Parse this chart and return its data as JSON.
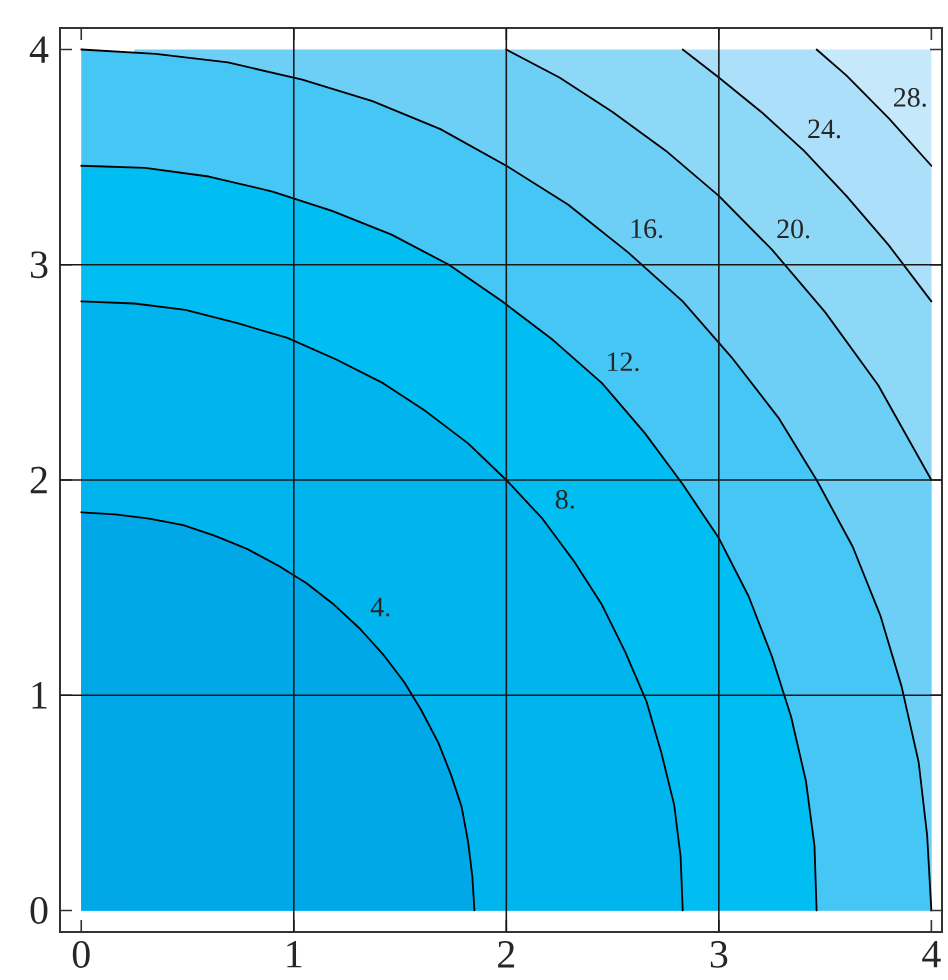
{
  "chart_data": {
    "type": "area",
    "xlim": [
      -0.1,
      4.05
    ],
    "ylim": [
      -0.1,
      4.1
    ],
    "xticks": [
      0,
      1,
      2,
      3,
      4
    ],
    "yticks": [
      0,
      1,
      2,
      3,
      4
    ],
    "grid": true,
    "series": [
      {
        "color": "#c5e9fb",
        "x": [
          3.46,
          4
        ],
        "values": [
          4,
          4
        ]
      },
      {
        "name": "28.",
        "color": "#acdff9",
        "x": [
          2.83,
          3.46,
          3.6,
          3.8,
          4
        ],
        "values": [
          4,
          4,
          3.88,
          3.68,
          3.46
        ]
      },
      {
        "name": "24.",
        "color": "#8ed8f7",
        "x": [
          2.0,
          2.83,
          3.0,
          3.2,
          3.4,
          3.6,
          3.8,
          4
        ],
        "values": [
          4,
          4,
          3.87,
          3.71,
          3.53,
          3.32,
          3.09,
          2.83
        ]
      },
      {
        "name": "20.",
        "color": "#6dcff6",
        "x": [
          0.25,
          2.0,
          2.25,
          2.5,
          2.75,
          3.0,
          3.25,
          3.5,
          3.75,
          4
        ],
        "values": [
          4,
          4,
          3.87,
          3.71,
          3.53,
          3.32,
          3.07,
          2.78,
          2.44,
          2.0
        ]
      },
      {
        "name": "16.",
        "color": "#45c6f5",
        "x": [
          0,
          0.35,
          0.69,
          1.04,
          1.37,
          1.69,
          2.0,
          2.29,
          2.57,
          2.83,
          3.06,
          3.28,
          3.46,
          3.63,
          3.76,
          3.86,
          3.94,
          3.98,
          4
        ],
        "values": [
          4,
          3.98,
          3.94,
          3.86,
          3.76,
          3.63,
          3.46,
          3.28,
          3.06,
          2.83,
          2.57,
          2.29,
          2.0,
          1.69,
          1.37,
          1.04,
          0.69,
          0.35,
          0
        ]
      },
      {
        "name": "12.",
        "color": "#00bdf2",
        "x": [
          0,
          0.3,
          0.6,
          0.9,
          1.18,
          1.46,
          1.73,
          1.98,
          2.22,
          2.45,
          2.65,
          2.83,
          3.0,
          3.14,
          3.25,
          3.34,
          3.41,
          3.45,
          3.46
        ],
        "values": [
          3.46,
          3.45,
          3.41,
          3.34,
          3.25,
          3.14,
          3.0,
          2.83,
          2.65,
          2.45,
          2.22,
          1.98,
          1.73,
          1.46,
          1.18,
          0.9,
          0.6,
          0.3,
          0
        ]
      },
      {
        "name": "8.",
        "color": "#00b5ee",
        "x": [
          0,
          0.25,
          0.49,
          0.73,
          0.97,
          1.2,
          1.42,
          1.62,
          1.82,
          2.0,
          2.17,
          2.32,
          2.45,
          2.56,
          2.66,
          2.73,
          2.79,
          2.82,
          2.83
        ],
        "values": [
          2.83,
          2.82,
          2.79,
          2.73,
          2.66,
          2.56,
          2.45,
          2.32,
          2.17,
          2.0,
          1.82,
          1.62,
          1.42,
          1.2,
          0.97,
          0.73,
          0.49,
          0.25,
          0
        ]
      },
      {
        "name": "4.",
        "color": "#00a8e8",
        "x": [
          0,
          0.16,
          0.32,
          0.48,
          0.63,
          0.78,
          0.93,
          1.06,
          1.19,
          1.31,
          1.42,
          1.52,
          1.6,
          1.68,
          1.74,
          1.79,
          1.82,
          1.84,
          1.85
        ],
        "values": [
          1.85,
          1.84,
          1.82,
          1.79,
          1.74,
          1.68,
          1.6,
          1.52,
          1.42,
          1.31,
          1.19,
          1.06,
          0.93,
          0.78,
          0.63,
          0.48,
          0.32,
          0.16,
          0
        ]
      }
    ]
  }
}
